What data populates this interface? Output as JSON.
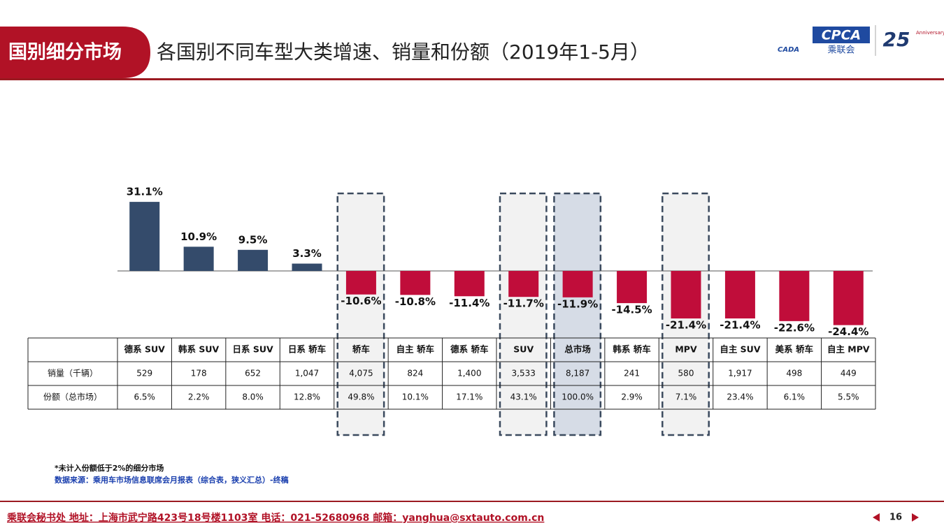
{
  "header": {
    "tab": "国别细分市场",
    "title": "各国别不同车型大类增速、销量和份额（2019年1-5月）",
    "logo": "CPCA",
    "logo_sub": "乘联会",
    "logo_mark": "CADA",
    "anniversary": "25",
    "anniversary_sub": "Anniversary"
  },
  "chart_data": {
    "type": "bar",
    "categories": [
      "德系 SUV",
      "韩系 SUV",
      "日系 SUV",
      "日系 轿车",
      "轿车",
      "自主 轿车",
      "德系 轿车",
      "SUV",
      "总市场",
      "韩系 轿车",
      "MPV",
      "自主 SUV",
      "美系 轿车",
      "自主 MPV"
    ],
    "values": [
      31.1,
      10.9,
      9.5,
      3.3,
      -10.6,
      -10.8,
      -11.4,
      -11.7,
      -11.9,
      -14.5,
      -21.4,
      -21.4,
      -22.6,
      -24.4
    ],
    "value_labels": [
      "31.1%",
      "10.9%",
      "9.5%",
      "3.3%",
      "-10.6%",
      "-10.8%",
      "-11.4%",
      "-11.7%",
      "-11.9%",
      "-14.5%",
      "-21.4%",
      "-21.4%",
      "-22.6%",
      "-24.4%"
    ],
    "colors": {
      "positive": "#344b6b",
      "negative": "#c00d3a"
    },
    "highlight": [
      4,
      7,
      8,
      10
    ],
    "highlight_filled": 8
  },
  "table": {
    "row_labels": [
      "销量（千辆）",
      "份额（总市场）"
    ],
    "rows": [
      [
        "529",
        "178",
        "652",
        "1,047",
        "4,075",
        "824",
        "1,400",
        "3,533",
        "8,187",
        "241",
        "580",
        "1,917",
        "498",
        "449"
      ],
      [
        "6.5%",
        "2.2%",
        "8.0%",
        "12.8%",
        "49.8%",
        "10.1%",
        "17.1%",
        "43.1%",
        "100.0%",
        "2.9%",
        "7.1%",
        "23.4%",
        "6.1%",
        "5.5%"
      ]
    ]
  },
  "notes": [
    "*未计入份额低于2%的细分市场",
    "数据来源：乘用车市场信息联席会月报表（综合表，狭义汇总）-终稿"
  ],
  "footer": {
    "text": "乘联会秘书处   地址：上海市武宁路423号18号楼1103室  电话：021-52680968   邮箱：yanghua@sxtauto.com.cn",
    "page": "16"
  }
}
